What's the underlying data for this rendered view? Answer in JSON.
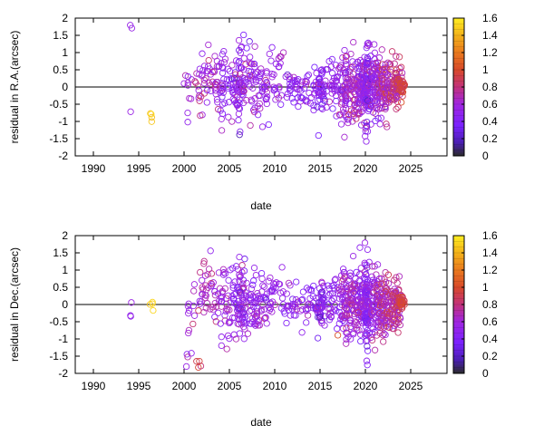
{
  "chart_data": [
    {
      "type": "scatter",
      "xlabel": "date",
      "ylabel": "residual in R.A.(arcsec)",
      "xlim": [
        1988,
        2029
      ],
      "ylim": [
        -2,
        2
      ],
      "xticks": [
        "1990",
        "1995",
        "2000",
        "2005",
        "2010",
        "2015",
        "2020",
        "2025"
      ],
      "yticks": [
        "-2",
        "-1.5",
        "-1",
        "-0.5",
        "0",
        "0.5",
        "1",
        "1.5",
        "2"
      ],
      "zero_line": true,
      "grid": false,
      "colorbar": {
        "ticks": [
          "0",
          "0.2",
          "0.4",
          "0.6",
          "0.8",
          "1",
          "1.2",
          "1.4",
          "1.6"
        ],
        "range": [
          0,
          1.6
        ],
        "stops": [
          {
            "v": 0.0,
            "color": "#2b2b2b"
          },
          {
            "v": 0.15,
            "color": "#4a1fb0"
          },
          {
            "v": 0.35,
            "color": "#7a22ff"
          },
          {
            "v": 0.6,
            "color": "#a026e0"
          },
          {
            "v": 0.8,
            "color": "#c2327a"
          },
          {
            "v": 1.0,
            "color": "#d84a2a"
          },
          {
            "v": 1.2,
            "color": "#ea7a1e"
          },
          {
            "v": 1.4,
            "color": "#f3b21a"
          },
          {
            "v": 1.6,
            "color": "#ffee22"
          }
        ]
      },
      "clusters": [
        {
          "x": 1994.1,
          "sx": 0.1,
          "y": 1.65,
          "sy": 0.15,
          "n": 2,
          "c": 0.55,
          "sc": 0.02
        },
        {
          "x": 1994.1,
          "sx": 0.05,
          "y": -0.72,
          "sy": 0.02,
          "n": 1,
          "c": 0.55,
          "sc": 0.02
        },
        {
          "x": 1996.4,
          "sx": 0.1,
          "y": -0.8,
          "sy": 0.1,
          "n": 4,
          "c": 1.5,
          "sc": 0.05
        },
        {
          "x": 2000.5,
          "sx": 0.3,
          "y": -0.1,
          "sy": 0.35,
          "n": 10,
          "c": 0.6,
          "sc": 0.08
        },
        {
          "x": 2001.8,
          "sx": 0.3,
          "y": 0.2,
          "sy": 0.5,
          "n": 22,
          "c": 0.65,
          "sc": 0.1
        },
        {
          "x": 2003.0,
          "sx": 0.5,
          "y": 0.1,
          "sy": 0.45,
          "n": 25,
          "c": 0.6,
          "sc": 0.1
        },
        {
          "x": 2004.1,
          "sx": 0.3,
          "y": 0.0,
          "sy": 0.55,
          "n": 28,
          "c": 0.55,
          "sc": 0.1
        },
        {
          "x": 2005.5,
          "sx": 0.6,
          "y": 0.05,
          "sy": 0.4,
          "n": 40,
          "c": 0.5,
          "sc": 0.1
        },
        {
          "x": 2006.3,
          "sx": 0.3,
          "y": 0.0,
          "sy": 0.65,
          "n": 45,
          "c": 0.5,
          "sc": 0.12
        },
        {
          "x": 2007.5,
          "sx": 0.5,
          "y": 0.2,
          "sy": 0.5,
          "n": 40,
          "c": 0.55,
          "sc": 0.1
        },
        {
          "x": 2008.6,
          "sx": 0.5,
          "y": 0.0,
          "sy": 0.55,
          "n": 30,
          "c": 0.55,
          "sc": 0.1
        },
        {
          "x": 2010.0,
          "sx": 0.6,
          "y": 0.3,
          "sy": 0.45,
          "n": 25,
          "c": 0.55,
          "sc": 0.1
        },
        {
          "x": 2011.8,
          "sx": 0.5,
          "y": 0.0,
          "sy": 0.2,
          "n": 25,
          "c": 0.5,
          "sc": 0.1
        },
        {
          "x": 2013.5,
          "sx": 0.8,
          "y": 0.0,
          "sy": 0.3,
          "n": 30,
          "c": 0.5,
          "sc": 0.1
        },
        {
          "x": 2015.0,
          "sx": 0.3,
          "y": 0.0,
          "sy": 0.35,
          "n": 45,
          "c": 0.45,
          "sc": 0.1
        },
        {
          "x": 2016.5,
          "sx": 0.5,
          "y": 0.05,
          "sy": 0.4,
          "n": 40,
          "c": 0.5,
          "sc": 0.1
        },
        {
          "x": 2017.7,
          "sx": 0.4,
          "y": 0.0,
          "sy": 0.5,
          "n": 55,
          "c": 0.6,
          "sc": 0.12
        },
        {
          "x": 2018.8,
          "sx": 0.5,
          "y": 0.0,
          "sy": 0.55,
          "n": 70,
          "c": 0.6,
          "sc": 0.12
        },
        {
          "x": 2019.8,
          "sx": 0.4,
          "y": 0.0,
          "sy": 0.5,
          "n": 90,
          "c": 0.55,
          "sc": 0.12
        },
        {
          "x": 2020.2,
          "sx": 0.15,
          "y": 0.0,
          "sy": 0.75,
          "n": 60,
          "c": 0.45,
          "sc": 0.1
        },
        {
          "x": 2021.2,
          "sx": 0.4,
          "y": 0.0,
          "sy": 0.45,
          "n": 90,
          "c": 0.6,
          "sc": 0.12
        },
        {
          "x": 2022.3,
          "sx": 0.4,
          "y": 0.0,
          "sy": 0.45,
          "n": 80,
          "c": 0.7,
          "sc": 0.12
        },
        {
          "x": 2023.5,
          "sx": 0.3,
          "y": 0.0,
          "sy": 0.3,
          "n": 70,
          "c": 0.78,
          "sc": 0.1
        },
        {
          "x": 2024.0,
          "sx": 0.2,
          "y": 0.0,
          "sy": 0.1,
          "n": 25,
          "c": 0.95,
          "sc": 0.05
        }
      ]
    },
    {
      "type": "scatter",
      "xlabel": "date",
      "ylabel": "residual in Dec.(arcsec)",
      "xlim": [
        1988,
        2029
      ],
      "ylim": [
        -2,
        2
      ],
      "xticks": [
        "1990",
        "1995",
        "2000",
        "2005",
        "2010",
        "2015",
        "2020",
        "2025"
      ],
      "yticks": [
        "-2",
        "-1.5",
        "-1",
        "-0.5",
        "0",
        "0.5",
        "1",
        "1.5",
        "2"
      ],
      "zero_line": true,
      "grid": false,
      "colorbar": {
        "ticks": [
          "0",
          "0.2",
          "0.4",
          "0.6",
          "0.8",
          "1",
          "1.2",
          "1.4",
          "1.6"
        ],
        "range": [
          0,
          1.6
        ],
        "stops": [
          {
            "v": 0.0,
            "color": "#2b2b2b"
          },
          {
            "v": 0.15,
            "color": "#4a1fb0"
          },
          {
            "v": 0.35,
            "color": "#7a22ff"
          },
          {
            "v": 0.6,
            "color": "#a026e0"
          },
          {
            "v": 0.8,
            "color": "#c2327a"
          },
          {
            "v": 1.0,
            "color": "#d84a2a"
          },
          {
            "v": 1.2,
            "color": "#ea7a1e"
          },
          {
            "v": 1.4,
            "color": "#f3b21a"
          },
          {
            "v": 1.6,
            "color": "#ffee22"
          }
        ]
      },
      "clusters": [
        {
          "x": 1994.1,
          "sx": 0.05,
          "y": 0.05,
          "sy": 0.02,
          "n": 1,
          "c": 0.55,
          "sc": 0.02
        },
        {
          "x": 1994.1,
          "sx": 0.05,
          "y": -0.35,
          "sy": 0.02,
          "n": 2,
          "c": 0.55,
          "sc": 0.02
        },
        {
          "x": 1996.4,
          "sx": 0.1,
          "y": 0.1,
          "sy": 0.15,
          "n": 4,
          "c": 1.5,
          "sc": 0.05
        },
        {
          "x": 2000.5,
          "sx": 0.3,
          "y": -1.3,
          "sy": 0.3,
          "n": 6,
          "c": 0.55,
          "sc": 0.08
        },
        {
          "x": 2000.8,
          "sx": 0.3,
          "y": 0.0,
          "sy": 0.2,
          "n": 6,
          "c": 0.55,
          "sc": 0.08
        },
        {
          "x": 2001.8,
          "sx": 0.3,
          "y": -1.8,
          "sy": 0.1,
          "n": 4,
          "c": 0.95,
          "sc": 0.1
        },
        {
          "x": 2002.0,
          "sx": 0.4,
          "y": 0.2,
          "sy": 0.5,
          "n": 22,
          "c": 0.65,
          "sc": 0.1
        },
        {
          "x": 2003.2,
          "sx": 0.5,
          "y": 0.3,
          "sy": 0.45,
          "n": 25,
          "c": 0.6,
          "sc": 0.1
        },
        {
          "x": 2004.3,
          "sx": 0.4,
          "y": 0.0,
          "sy": 0.5,
          "n": 28,
          "c": 0.55,
          "sc": 0.1
        },
        {
          "x": 2005.8,
          "sx": 0.5,
          "y": 0.1,
          "sy": 0.45,
          "n": 40,
          "c": 0.5,
          "sc": 0.1
        },
        {
          "x": 2006.4,
          "sx": 0.3,
          "y": 0.1,
          "sy": 0.65,
          "n": 45,
          "c": 0.55,
          "sc": 0.12
        },
        {
          "x": 2007.6,
          "sx": 0.5,
          "y": 0.0,
          "sy": 0.5,
          "n": 40,
          "c": 0.55,
          "sc": 0.1
        },
        {
          "x": 2008.8,
          "sx": 0.5,
          "y": 0.1,
          "sy": 0.45,
          "n": 30,
          "c": 0.55,
          "sc": 0.1
        },
        {
          "x": 2010.0,
          "sx": 0.6,
          "y": 0.3,
          "sy": 0.45,
          "n": 25,
          "c": 0.55,
          "sc": 0.1
        },
        {
          "x": 2011.8,
          "sx": 0.5,
          "y": 0.0,
          "sy": 0.25,
          "n": 22,
          "c": 0.5,
          "sc": 0.1
        },
        {
          "x": 2013.5,
          "sx": 0.8,
          "y": 0.0,
          "sy": 0.3,
          "n": 30,
          "c": 0.5,
          "sc": 0.1
        },
        {
          "x": 2015.0,
          "sx": 0.3,
          "y": 0.0,
          "sy": 0.35,
          "n": 45,
          "c": 0.45,
          "sc": 0.1
        },
        {
          "x": 2016.5,
          "sx": 0.5,
          "y": 0.05,
          "sy": 0.4,
          "n": 40,
          "c": 0.5,
          "sc": 0.1
        },
        {
          "x": 2017.8,
          "sx": 0.4,
          "y": 0.0,
          "sy": 0.45,
          "n": 55,
          "c": 0.6,
          "sc": 0.12
        },
        {
          "x": 2018.8,
          "sx": 0.5,
          "y": 0.0,
          "sy": 0.5,
          "n": 70,
          "c": 0.6,
          "sc": 0.12
        },
        {
          "x": 2019.8,
          "sx": 0.4,
          "y": 0.0,
          "sy": 0.5,
          "n": 90,
          "c": 0.55,
          "sc": 0.12
        },
        {
          "x": 2020.2,
          "sx": 0.15,
          "y": 0.0,
          "sy": 0.8,
          "n": 60,
          "c": 0.45,
          "sc": 0.1
        },
        {
          "x": 2021.2,
          "sx": 0.4,
          "y": 0.0,
          "sy": 0.45,
          "n": 90,
          "c": 0.6,
          "sc": 0.12
        },
        {
          "x": 2022.3,
          "sx": 0.4,
          "y": 0.0,
          "sy": 0.45,
          "n": 80,
          "c": 0.7,
          "sc": 0.12
        },
        {
          "x": 2023.5,
          "sx": 0.3,
          "y": 0.0,
          "sy": 0.3,
          "n": 70,
          "c": 0.78,
          "sc": 0.1
        },
        {
          "x": 2024.0,
          "sx": 0.2,
          "y": 0.05,
          "sy": 0.1,
          "n": 25,
          "c": 0.95,
          "sc": 0.05
        }
      ]
    }
  ]
}
